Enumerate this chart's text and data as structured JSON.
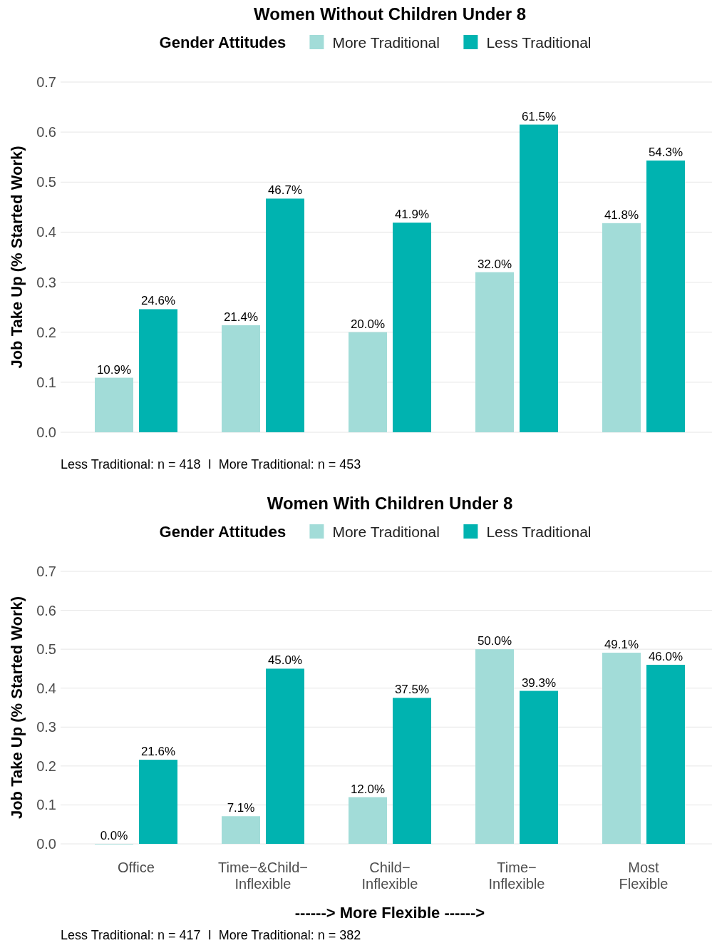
{
  "chart_data": [
    {
      "type": "bar",
      "title": "Women Without Children Under 8",
      "legend_title": "Gender Attitudes",
      "legend": "top",
      "ylabel": "Job Take Up (% Started Work)",
      "categories": [
        null,
        null,
        null,
        null,
        null
      ],
      "series": [
        {
          "name": "More Traditional",
          "color": "#a2dcd8",
          "values": [
            0.109,
            0.214,
            0.2,
            0.32,
            0.418
          ],
          "value_labels": [
            "10.9%",
            "21.4%",
            "20.0%",
            "32.0%",
            "41.8%"
          ]
        },
        {
          "name": "Less Traditional",
          "color": "#00b3b0",
          "values": [
            0.246,
            0.467,
            0.419,
            0.615,
            0.543
          ],
          "value_labels": [
            "24.6%",
            "46.7%",
            "41.9%",
            "61.5%",
            "54.3%"
          ]
        }
      ],
      "ylim": [
        0,
        0.7
      ],
      "yticks": [
        {
          "value": 0,
          "label": "0.0"
        },
        0.1,
        0.2,
        0.3,
        0.4,
        0.5,
        0.6,
        0.7
      ],
      "grid": "y",
      "tick_labels": "y",
      "annotations": [
        "Less Traditional: n = 418  I  More Traditional: n = 453"
      ]
    },
    {
      "type": "bar",
      "title": "Women With Children Under 8",
      "legend_title": "Gender Attitudes",
      "legend": "top",
      "ylabel": "Job Take Up (% Started Work)",
      "xlabel": "------> More Flexible ------>",
      "categories": [
        "Office",
        "Time−&Child− Inflexible",
        "Child− Inflexible",
        "Time− Inflexible",
        "Most Flexible"
      ],
      "series": [
        {
          "name": "More Traditional",
          "color": "#a2dcd8",
          "values": [
            0,
            0.071,
            0.12,
            0.5,
            0.491
          ],
          "value_labels": [
            "0.0%",
            "7.1%",
            "12.0%",
            "50.0%",
            "49.1%"
          ]
        },
        {
          "name": "Less Traditional",
          "color": "#00b3b0",
          "values": [
            0.216,
            0.45,
            0.375,
            0.393,
            0.46
          ],
          "value_labels": [
            "21.6%",
            "45.0%",
            "37.5%",
            "39.3%",
            "46.0%"
          ]
        }
      ],
      "ylim": [
        0,
        0.7
      ],
      "yticks": [
        {
          "value": 0,
          "label": "0.0"
        },
        0.1,
        0.2,
        0.3,
        0.4,
        0.5,
        0.6,
        0.7
      ],
      "grid": "y",
      "annotations": [
        "Less Traditional: n = 417  I  More Traditional: n = 382"
      ]
    }
  ]
}
